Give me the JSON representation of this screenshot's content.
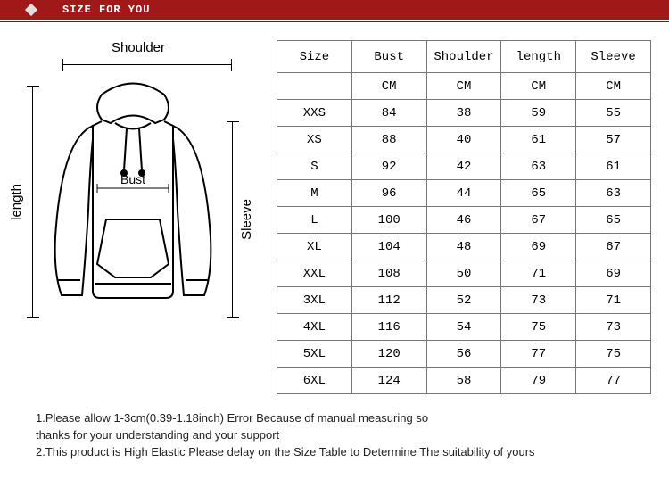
{
  "header": {
    "title": "SIZE FOR YOU",
    "band_color": "#a01818",
    "text_color": "#ffffff"
  },
  "diagram": {
    "labels": {
      "shoulder": "Shoulder",
      "length": "length",
      "sleeve": "Sleeve",
      "bust": "Bust"
    }
  },
  "table": {
    "type": "table",
    "border_color": "#777777",
    "font_family": "Courier New",
    "cell_fontsize": 14,
    "columns": [
      "Size",
      "Bust",
      "Shoulder",
      "length",
      "Sleeve"
    ],
    "unit_row": [
      "",
      "CM",
      "CM",
      "CM",
      "CM"
    ],
    "rows": [
      [
        "XXS",
        "84",
        "38",
        "59",
        "55"
      ],
      [
        "XS",
        "88",
        "40",
        "61",
        "57"
      ],
      [
        "S",
        "92",
        "42",
        "63",
        "61"
      ],
      [
        "M",
        "96",
        "44",
        "65",
        "63"
      ],
      [
        "L",
        "100",
        "46",
        "67",
        "65"
      ],
      [
        "XL",
        "104",
        "48",
        "69",
        "67"
      ],
      [
        "XXL",
        "108",
        "50",
        "71",
        "69"
      ],
      [
        "3XL",
        "112",
        "52",
        "73",
        "71"
      ],
      [
        "4XL",
        "116",
        "54",
        "75",
        "73"
      ],
      [
        "5XL",
        "120",
        "56",
        "77",
        "75"
      ],
      [
        "6XL",
        "124",
        "58",
        "79",
        "77"
      ]
    ]
  },
  "notes": {
    "line1": "1.Please allow 1-3cm(0.39-1.18inch) Error Because of manual measuring so",
    "line2": "thanks for your understanding and your support",
    "line3": "2.This product is High Elastic    Please delay on the Size Table to Determine The suitability of yours"
  }
}
